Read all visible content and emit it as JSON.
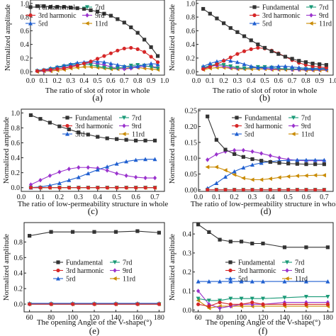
{
  "figure": {
    "panel_labels": [
      "(a)",
      "(b)",
      "(c)",
      "(d)",
      "(e)",
      "(f)"
    ]
  },
  "colors": {
    "Fundamental": "#333333",
    "3rd harmonic": "#d62728",
    "5rd": "#1f5fd0",
    "7rd": "#1a9a77",
    "9rd": "#9a32cd",
    "11rd": "#c98a00"
  },
  "chart_data": [
    {
      "type": "line",
      "panel": "(a)",
      "xlabel": "The ratio of slot of rotor in whole",
      "ylabel": "Normalized amplitude",
      "xlim": [
        0.0,
        1.0
      ],
      "ylim": [
        -0.05,
        1.05
      ],
      "xticks": [
        0.0,
        0.1,
        0.2,
        0.3,
        0.4,
        0.5,
        0.6,
        0.7,
        0.8,
        0.9,
        1.0
      ],
      "yticks": [
        0.0,
        0.2,
        0.4,
        0.6,
        0.8,
        1.0
      ],
      "x": [
        0.05,
        0.1,
        0.15,
        0.2,
        0.25,
        0.3,
        0.35,
        0.4,
        0.45,
        0.5,
        0.55,
        0.6,
        0.65,
        0.7,
        0.75,
        0.8,
        0.85,
        0.9,
        0.95
      ],
      "grid": false,
      "legend_position": "top-left",
      "series": [
        {
          "name": "Fundamental",
          "marker": "square",
          "values": [
            0.96,
            0.96,
            0.95,
            0.95,
            0.95,
            0.94,
            0.93,
            0.92,
            0.9,
            0.88,
            0.85,
            0.82,
            0.77,
            0.72,
            0.65,
            0.57,
            0.47,
            0.36,
            0.23
          ]
        },
        {
          "name": "3rd harmonic",
          "marker": "circle",
          "values": [
            0.01,
            0.02,
            0.03,
            0.04,
            0.05,
            0.07,
            0.09,
            0.12,
            0.15,
            0.19,
            0.23,
            0.27,
            0.31,
            0.34,
            0.35,
            0.33,
            0.29,
            0.22,
            0.14
          ]
        },
        {
          "name": "5rd",
          "marker": "triangle-up",
          "values": [
            0.02,
            0.03,
            0.05,
            0.07,
            0.09,
            0.11,
            0.13,
            0.14,
            0.15,
            0.15,
            0.14,
            0.12,
            0.1,
            0.08,
            0.07,
            0.08,
            0.1,
            0.12,
            0.11
          ]
        },
        {
          "name": "7rd",
          "marker": "triangle-down",
          "values": [
            0.01,
            0.02,
            0.04,
            0.06,
            0.08,
            0.1,
            0.11,
            0.11,
            0.1,
            0.08,
            0.06,
            0.05,
            0.05,
            0.07,
            0.09,
            0.1,
            0.09,
            0.07,
            0.05
          ]
        },
        {
          "name": "9rd",
          "marker": "diamond",
          "values": [
            0.01,
            0.01,
            0.02,
            0.04,
            0.06,
            0.08,
            0.1,
            0.12,
            0.13,
            0.12,
            0.1,
            0.07,
            0.05,
            0.04,
            0.05,
            0.07,
            0.08,
            0.08,
            0.06
          ]
        },
        {
          "name": "11rd",
          "marker": "triangle-left",
          "values": [
            0.0,
            0.01,
            0.01,
            0.02,
            0.03,
            0.05,
            0.06,
            0.07,
            0.07,
            0.06,
            0.05,
            0.04,
            0.04,
            0.05,
            0.06,
            0.06,
            0.05,
            0.04,
            0.03
          ]
        }
      ]
    },
    {
      "type": "line",
      "panel": "(b)",
      "xlabel": "The ratio of slot of rotor in whole",
      "ylabel": "Normalized amplitude",
      "xlim": [
        0.0,
        1.0
      ],
      "ylim": [
        -0.05,
        1.05
      ],
      "xticks": [
        0.0,
        0.1,
        0.2,
        0.3,
        0.4,
        0.5,
        0.6,
        0.7,
        0.8,
        0.9,
        1.0
      ],
      "yticks": [
        0.0,
        0.2,
        0.4,
        0.6,
        0.8,
        1.0
      ],
      "x": [
        0.05,
        0.1,
        0.15,
        0.2,
        0.25,
        0.3,
        0.35,
        0.4,
        0.45,
        0.5,
        0.55,
        0.6,
        0.65,
        0.7,
        0.75,
        0.8,
        0.85,
        0.9,
        0.95
      ],
      "grid": false,
      "legend_position": "top-right",
      "series": [
        {
          "name": "Fundamental",
          "marker": "square",
          "values": [
            0.92,
            0.85,
            0.78,
            0.71,
            0.64,
            0.58,
            0.52,
            0.46,
            0.4,
            0.35,
            0.3,
            0.26,
            0.22,
            0.19,
            0.16,
            0.14,
            0.12,
            0.11,
            0.1
          ]
        },
        {
          "name": "3rd harmonic",
          "marker": "circle",
          "values": [
            0.04,
            0.07,
            0.11,
            0.16,
            0.21,
            0.26,
            0.3,
            0.33,
            0.35,
            0.34,
            0.31,
            0.27,
            0.22,
            0.17,
            0.13,
            0.1,
            0.08,
            0.07,
            0.06
          ]
        },
        {
          "name": "5rd",
          "marker": "triangle-up",
          "values": [
            0.08,
            0.12,
            0.15,
            0.17,
            0.16,
            0.14,
            0.11,
            0.08,
            0.06,
            0.06,
            0.07,
            0.08,
            0.08,
            0.07,
            0.06,
            0.05,
            0.05,
            0.05,
            0.05
          ]
        },
        {
          "name": "7rd",
          "marker": "triangle-down",
          "values": [
            0.06,
            0.09,
            0.11,
            0.1,
            0.08,
            0.06,
            0.05,
            0.06,
            0.07,
            0.07,
            0.06,
            0.05,
            0.04,
            0.04,
            0.04,
            0.04,
            0.04,
            0.04,
            0.04
          ]
        },
        {
          "name": "9rd",
          "marker": "diamond",
          "values": [
            0.05,
            0.08,
            0.09,
            0.08,
            0.06,
            0.05,
            0.05,
            0.06,
            0.06,
            0.05,
            0.04,
            0.04,
            0.04,
            0.03,
            0.03,
            0.03,
            0.03,
            0.03,
            0.03
          ]
        },
        {
          "name": "11rd",
          "marker": "triangle-left",
          "values": [
            0.03,
            0.05,
            0.06,
            0.06,
            0.05,
            0.04,
            0.04,
            0.04,
            0.04,
            0.04,
            0.03,
            0.03,
            0.03,
            0.03,
            0.03,
            0.02,
            0.02,
            0.02,
            0.02
          ]
        }
      ]
    },
    {
      "type": "line",
      "panel": "(c)",
      "xlabel": "The ratio of low-permeability structure in whole",
      "ylabel": "Normalized amplitude",
      "xlim": [
        0.0,
        0.75
      ],
      "ylim": [
        -0.05,
        1.05
      ],
      "xticks": [
        0.0,
        0.1,
        0.2,
        0.3,
        0.4,
        0.5,
        0.6,
        0.7
      ],
      "yticks": [
        0.0,
        0.2,
        0.4,
        0.6,
        0.8,
        1.0
      ],
      "x": [
        0.05,
        0.1,
        0.15,
        0.2,
        0.25,
        0.3,
        0.35,
        0.4,
        0.45,
        0.5,
        0.55,
        0.6,
        0.65,
        0.7
      ],
      "grid": false,
      "legend_position": "top-right",
      "series": [
        {
          "name": "Fundamental",
          "marker": "square",
          "values": [
            0.97,
            0.92,
            0.87,
            0.82,
            0.78,
            0.74,
            0.71,
            0.68,
            0.66,
            0.65,
            0.64,
            0.63,
            0.63,
            0.63
          ]
        },
        {
          "name": "3rd harmonic",
          "marker": "circle",
          "values": [
            0.0,
            0.0,
            0.0,
            0.0,
            0.0,
            0.0,
            0.0,
            0.0,
            0.0,
            0.0,
            0.0,
            0.0,
            0.0,
            0.0
          ]
        },
        {
          "name": "5rd",
          "marker": "triangle-up",
          "values": [
            0.0,
            0.01,
            0.03,
            0.06,
            0.1,
            0.14,
            0.19,
            0.24,
            0.28,
            0.32,
            0.35,
            0.37,
            0.38,
            0.38
          ]
        },
        {
          "name": "7rd",
          "marker": "triangle-down",
          "values": [
            0.0,
            0.0,
            0.0,
            0.0,
            0.0,
            0.0,
            0.0,
            0.0,
            0.0,
            0.0,
            0.0,
            0.0,
            0.0,
            0.0
          ]
        },
        {
          "name": "9rd",
          "marker": "diamond",
          "values": [
            0.04,
            0.1,
            0.16,
            0.21,
            0.25,
            0.27,
            0.27,
            0.26,
            0.23,
            0.19,
            0.16,
            0.14,
            0.13,
            0.13
          ]
        },
        {
          "name": "11rd",
          "marker": "triangle-left",
          "values": [
            0.0,
            0.0,
            0.0,
            0.0,
            0.0,
            0.0,
            0.0,
            0.0,
            0.0,
            0.0,
            0.0,
            0.0,
            0.0,
            0.0
          ]
        }
      ]
    },
    {
      "type": "line",
      "panel": "(d)",
      "xlabel": "The ratio of low-permeability structure in whole",
      "ylabel": "Normalized amplitude",
      "xlim": [
        0.0,
        0.75
      ],
      "ylim": [
        -0.005,
        0.255
      ],
      "xticks": [
        0.0,
        0.1,
        0.2,
        0.3,
        0.4,
        0.5,
        0.6,
        0.7
      ],
      "yticks": [
        0.0,
        0.05,
        0.1,
        0.15,
        0.2,
        0.25
      ],
      "x": [
        0.05,
        0.1,
        0.15,
        0.2,
        0.25,
        0.3,
        0.35,
        0.4,
        0.45,
        0.5,
        0.55,
        0.6,
        0.65,
        0.7
      ],
      "grid": false,
      "legend_position": "top-right",
      "series": [
        {
          "name": "Fundamental",
          "marker": "square",
          "values": [
            0.232,
            0.158,
            0.127,
            0.113,
            0.104,
            0.097,
            0.092,
            0.088,
            0.085,
            0.083,
            0.082,
            0.081,
            0.081,
            0.081
          ]
        },
        {
          "name": "3rd harmonic",
          "marker": "circle",
          "values": [
            0.0,
            0.0,
            0.0,
            0.0,
            0.0,
            0.0,
            0.0,
            0.0,
            0.0,
            0.0,
            0.0,
            0.0,
            0.0,
            0.0
          ]
        },
        {
          "name": "5rd",
          "marker": "triangle-up",
          "values": [
            0.005,
            0.021,
            0.041,
            0.058,
            0.07,
            0.079,
            0.085,
            0.089,
            0.092,
            0.093,
            0.094,
            0.094,
            0.094,
            0.094
          ]
        },
        {
          "name": "7rd",
          "marker": "triangle-down",
          "values": [
            0.0,
            0.0,
            0.0,
            0.0,
            0.0,
            0.0,
            0.0,
            0.0,
            0.0,
            0.0,
            0.0,
            0.0,
            0.0,
            0.0
          ]
        },
        {
          "name": "9rd",
          "marker": "diamond",
          "values": [
            0.095,
            0.112,
            0.121,
            0.125,
            0.125,
            0.121,
            0.115,
            0.108,
            0.101,
            0.096,
            0.093,
            0.092,
            0.092,
            0.092
          ]
        },
        {
          "name": "11rd",
          "marker": "triangle-left",
          "values": [
            0.072,
            0.072,
            0.062,
            0.048,
            0.037,
            0.032,
            0.032,
            0.035,
            0.039,
            0.042,
            0.044,
            0.045,
            0.046,
            0.046
          ]
        }
      ]
    },
    {
      "type": "line",
      "panel": "(e)",
      "xlabel": "The opening Angle of the V-shape(°)",
      "ylabel": "Normalized amplitude",
      "xlim": [
        55,
        185
      ],
      "ylim": [
        -0.1,
        1.05
      ],
      "xticks": [
        60,
        80,
        100,
        120,
        140,
        160,
        180
      ],
      "yticks": [
        0.0,
        0.2,
        0.4,
        0.6,
        0.8
      ],
      "x": [
        60,
        80,
        100,
        120,
        140,
        160,
        180
      ],
      "grid": false,
      "legend_position": "center-right",
      "series": [
        {
          "name": "Fundamental",
          "marker": "square",
          "values": [
            0.88,
            0.93,
            0.93,
            0.93,
            0.93,
            0.94,
            0.92
          ]
        },
        {
          "name": "3rd harmonic",
          "marker": "circle",
          "values": [
            0.0,
            0.0,
            0.0,
            0.0,
            0.0,
            0.0,
            0.0
          ]
        },
        {
          "name": "5rd",
          "marker": "triangle-up",
          "values": [
            0.01,
            0.01,
            0.01,
            0.01,
            0.01,
            0.01,
            0.01
          ]
        },
        {
          "name": "7rd",
          "marker": "triangle-down",
          "values": [
            0.0,
            0.0,
            0.0,
            0.0,
            0.0,
            0.0,
            0.0
          ]
        },
        {
          "name": "9rd",
          "marker": "diamond",
          "values": [
            0.0,
            0.0,
            0.0,
            0.0,
            0.0,
            0.0,
            0.0
          ]
        },
        {
          "name": "11rd",
          "marker": "triangle-left",
          "values": [
            0.0,
            0.0,
            0.0,
            0.0,
            0.0,
            0.0,
            0.0
          ]
        }
      ]
    },
    {
      "type": "line",
      "panel": "(f)",
      "xlabel": "The opening Angle of the V-shape(°)",
      "ylabel": "Normalized amplitude",
      "xlim": [
        55,
        185
      ],
      "ylim": [
        -0.01,
        0.46
      ],
      "xticks": [
        60,
        80,
        100,
        120,
        140,
        160,
        180
      ],
      "yticks": [
        0.0,
        0.1,
        0.2,
        0.3,
        0.4
      ],
      "x": [
        60,
        70,
        80,
        90,
        100,
        110,
        120,
        140,
        160,
        180
      ],
      "grid": false,
      "legend_position": "center-right",
      "series": [
        {
          "name": "Fundamental",
          "marker": "square",
          "values": [
            0.45,
            0.41,
            0.37,
            0.36,
            0.36,
            0.35,
            0.35,
            0.33,
            0.33,
            0.33
          ]
        },
        {
          "name": "3rd harmonic",
          "marker": "circle",
          "values": [
            0.03,
            0.02,
            0.04,
            0.03,
            0.03,
            0.04,
            0.03,
            0.03,
            0.03,
            0.03
          ]
        },
        {
          "name": "5rd",
          "marker": "triangle-up",
          "values": [
            0.15,
            0.15,
            0.15,
            0.15,
            0.15,
            0.15,
            0.15,
            0.15,
            0.15,
            0.15
          ]
        },
        {
          "name": "7rd",
          "marker": "triangle-down",
          "values": [
            0.06,
            0.05,
            0.05,
            0.06,
            0.06,
            0.06,
            0.06,
            0.065,
            0.07,
            0.07
          ]
        },
        {
          "name": "9rd",
          "marker": "diamond",
          "values": [
            0.1,
            0.03,
            0.01,
            0.02,
            0.03,
            0.03,
            0.03,
            0.04,
            0.04,
            0.04
          ]
        },
        {
          "name": "11rd",
          "marker": "triangle-left",
          "values": [
            0.05,
            0.01,
            0.02,
            0.02,
            0.02,
            0.02,
            0.02,
            0.02,
            0.02,
            0.02
          ]
        }
      ]
    }
  ]
}
